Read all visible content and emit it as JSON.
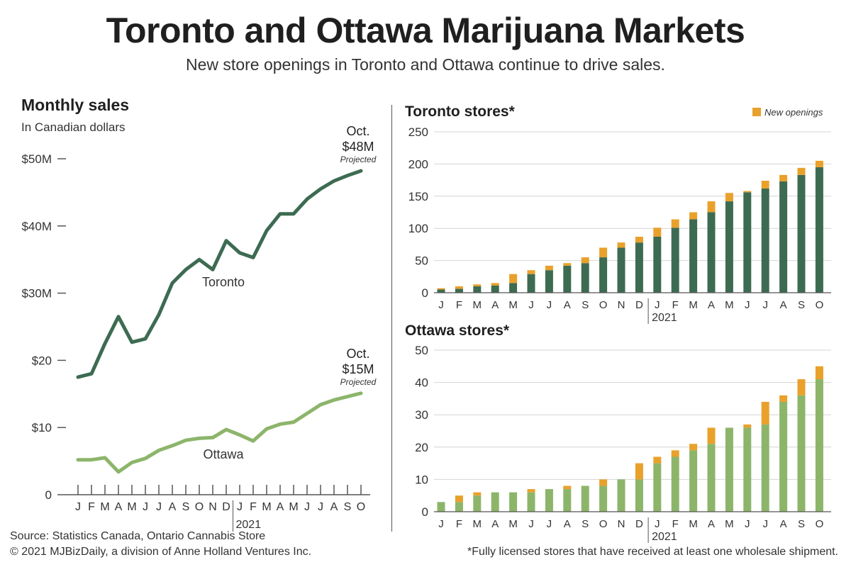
{
  "title": "Toronto and Ottawa Marijuana Markets",
  "subtitle": "New store openings in Toronto and Ottawa continue to drive sales.",
  "footer": {
    "source": "Source: Statistics Canada, Ontario Cannabis Store",
    "copyright": "© 2021 MJBizDaily, a division of Anne Holland Ventures Inc.",
    "note": "*Fully licensed stores that have received at least one wholesale shipment."
  },
  "colors": {
    "toronto": "#3d6b52",
    "ottawa": "#8cb56a",
    "new_openings": "#e9a12b",
    "grid": "#d4d4d4",
    "axis": "#555555"
  },
  "chart_data": [
    {
      "type": "line",
      "title": "Monthly sales",
      "subtitle": "In Canadian dollars",
      "x": [
        "J",
        "F",
        "M",
        "A",
        "M",
        "J",
        "J",
        "A",
        "S",
        "O",
        "N",
        "D",
        "J",
        "F",
        "M",
        "A",
        "M",
        "J",
        "J",
        "A",
        "S",
        "O"
      ],
      "year_marker": {
        "label": "2021",
        "index": 12
      },
      "ylim": [
        0,
        50
      ],
      "yticks": [
        0,
        10,
        20,
        30,
        40,
        50
      ],
      "ytick_labels": [
        "0",
        "$10",
        "$20",
        "$30M",
        "$40M",
        "$50M"
      ],
      "grid": false,
      "series": [
        {
          "name": "Toronto",
          "color": "#3d6b52",
          "values": [
            17.5,
            18,
            22.5,
            26.5,
            22.7,
            23.2,
            26.8,
            31.5,
            33.5,
            35,
            33.5,
            37.8,
            36,
            35.3,
            39.3,
            41.8,
            41.8,
            44,
            45.5,
            46.7,
            47.5,
            48.2
          ],
          "end_label": {
            "line1": "Oct.",
            "line2": "$48M",
            "line3": "Projected"
          }
        },
        {
          "name": "Ottawa",
          "color": "#8cb56a",
          "values": [
            5.2,
            5.2,
            5.5,
            3.4,
            4.8,
            5.4,
            6.6,
            7.3,
            8.1,
            8.4,
            8.5,
            9.7,
            8.9,
            8.0,
            9.8,
            10.5,
            10.8,
            12.1,
            13.4,
            14.1,
            14.6,
            15.1
          ],
          "end_label": {
            "line1": "Oct.",
            "line2": "$15M",
            "line3": "Projected"
          }
        }
      ]
    },
    {
      "type": "bar",
      "title": "Toronto stores*",
      "legend": {
        "label": "New openings",
        "position": "top-right"
      },
      "categories": [
        "J",
        "F",
        "M",
        "A",
        "M",
        "J",
        "J",
        "A",
        "S",
        "O",
        "N",
        "D",
        "J",
        "F",
        "M",
        "A",
        "M",
        "J",
        "J",
        "A",
        "S",
        "O"
      ],
      "year_marker": {
        "label": "2021",
        "index": 12
      },
      "ylim": [
        0,
        250
      ],
      "yticks": [
        0,
        50,
        100,
        150,
        200,
        250
      ],
      "grid": true,
      "series": [
        {
          "name": "",
          "color": "#3d6b52",
          "values": [
            5,
            6,
            10,
            11,
            15,
            29,
            35,
            42,
            46,
            55,
            70,
            78,
            87,
            101,
            114,
            125,
            142,
            156,
            162,
            173,
            183,
            195
          ]
        },
        {
          "name": "New openings",
          "color": "#e9a12b",
          "values": [
            2,
            4,
            3,
            4,
            14,
            6,
            7,
            4,
            9,
            15,
            8,
            9,
            14,
            13,
            11,
            17,
            13,
            2,
            12,
            10,
            11,
            10
          ]
        }
      ]
    },
    {
      "type": "bar",
      "title": "Ottawa stores*",
      "categories": [
        "J",
        "F",
        "M",
        "A",
        "M",
        "J",
        "J",
        "A",
        "S",
        "O",
        "N",
        "D",
        "J",
        "F",
        "M",
        "A",
        "M",
        "J",
        "J",
        "A",
        "S",
        "O"
      ],
      "year_marker": {
        "label": "2021",
        "index": 12
      },
      "ylim": [
        0,
        50
      ],
      "yticks": [
        0,
        10,
        20,
        30,
        40,
        50
      ],
      "grid": true,
      "series": [
        {
          "name": "",
          "color": "#8cb56a",
          "values": [
            3,
            3,
            5,
            6,
            6,
            6,
            7,
            7,
            8,
            8,
            10,
            10,
            15,
            17,
            19,
            21,
            26,
            26,
            27,
            34,
            36,
            41
          ]
        },
        {
          "name": "New openings",
          "color": "#e9a12b",
          "values": [
            0,
            2,
            1,
            0,
            0,
            1,
            0,
            1,
            0,
            2,
            0,
            5,
            2,
            2,
            2,
            5,
            0,
            1,
            7,
            2,
            5,
            4
          ]
        }
      ]
    }
  ]
}
